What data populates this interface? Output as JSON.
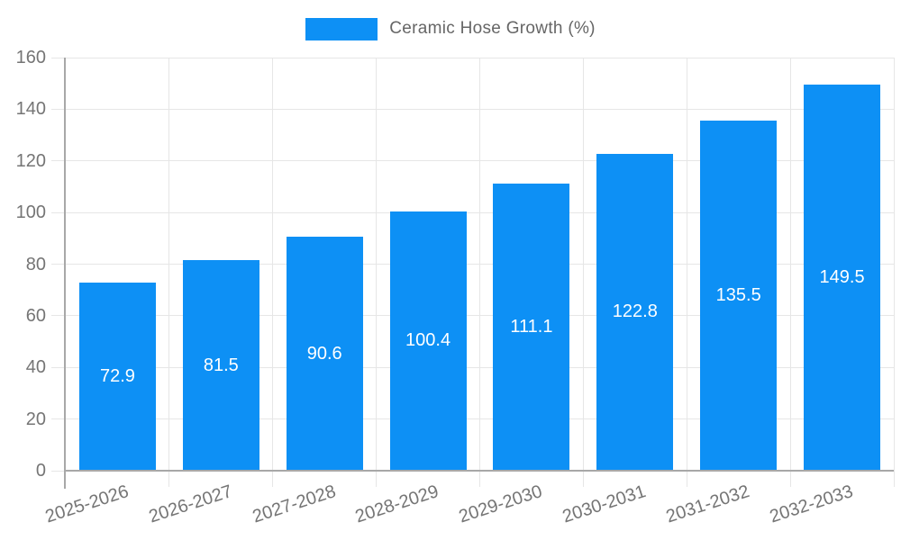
{
  "legend": {
    "label": "Ceramic Hose Growth (%)"
  },
  "chart_data": {
    "type": "bar",
    "title": "",
    "categories": [
      "2025-2026",
      "2026-2027",
      "2027-2028",
      "2028-2029",
      "2029-2030",
      "2030-2031",
      "2031-2032",
      "2032-2033"
    ],
    "series": [
      {
        "name": "Ceramic Hose Growth (%)",
        "values": [
          72.9,
          81.5,
          90.6,
          100.4,
          111.1,
          122.8,
          135.5,
          149.5
        ]
      }
    ],
    "value_labels": [
      "72.9",
      "81.5",
      "90.6",
      "100.4",
      "111.1",
      "122.8",
      "135.5",
      "149.5"
    ],
    "ylabel": "",
    "xlabel": "",
    "ylim": [
      0,
      160
    ],
    "ytick_step": 20,
    "ytick_labels": [
      "0",
      "20",
      "40",
      "60",
      "80",
      "100",
      "120",
      "140",
      "160"
    ],
    "grid": true,
    "legend_position": "top-center",
    "colors": {
      "bar": "#0d90f5",
      "grid": "#e6e6e6",
      "axis": "#a8a8a8",
      "tick_text": "#757575",
      "legend_text": "#666666",
      "value_text": "#ffffff",
      "background": "#ffffff"
    }
  }
}
